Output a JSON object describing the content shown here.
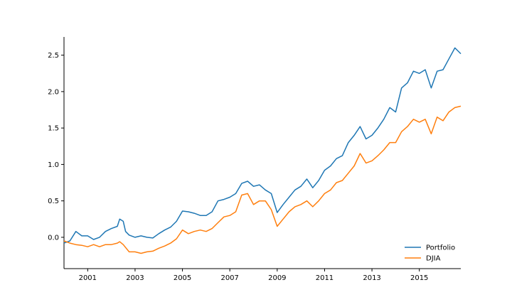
{
  "chart_data": {
    "type": "line",
    "title": "",
    "xlabel": "",
    "ylabel": "",
    "xlim": [
      2000.0,
      2016.75
    ],
    "ylim": [
      -0.43,
      2.75
    ],
    "x_ticks": [
      2001,
      2003,
      2005,
      2007,
      2009,
      2011,
      2013,
      2015
    ],
    "y_ticks": [
      0.0,
      0.5,
      1.0,
      1.5,
      2.0,
      2.5
    ],
    "y_tick_labels": [
      "0.0",
      "0.5",
      "1.0",
      "1.5",
      "2.0",
      "2.5"
    ],
    "grid": false,
    "legend_position": "lower-right",
    "series": [
      {
        "name": "Portfolio",
        "color": "#1f77b4",
        "points": [
          [
            2000.0,
            -0.08
          ],
          [
            2000.25,
            -0.05
          ],
          [
            2000.5,
            0.08
          ],
          [
            2000.75,
            0.02
          ],
          [
            2001.0,
            0.02
          ],
          [
            2001.25,
            -0.03
          ],
          [
            2001.5,
            0.0
          ],
          [
            2001.75,
            0.08
          ],
          [
            2002.0,
            0.12
          ],
          [
            2002.25,
            0.15
          ],
          [
            2002.35,
            0.25
          ],
          [
            2002.5,
            0.22
          ],
          [
            2002.6,
            0.08
          ],
          [
            2002.75,
            0.03
          ],
          [
            2003.0,
            0.0
          ],
          [
            2003.25,
            0.02
          ],
          [
            2003.5,
            0.0
          ],
          [
            2003.75,
            -0.01
          ],
          [
            2004.0,
            0.05
          ],
          [
            2004.25,
            0.1
          ],
          [
            2004.5,
            0.14
          ],
          [
            2004.75,
            0.22
          ],
          [
            2005.0,
            0.36
          ],
          [
            2005.25,
            0.35
          ],
          [
            2005.5,
            0.33
          ],
          [
            2005.75,
            0.3
          ],
          [
            2006.0,
            0.3
          ],
          [
            2006.25,
            0.35
          ],
          [
            2006.5,
            0.5
          ],
          [
            2006.75,
            0.52
          ],
          [
            2007.0,
            0.55
          ],
          [
            2007.25,
            0.6
          ],
          [
            2007.5,
            0.74
          ],
          [
            2007.75,
            0.77
          ],
          [
            2008.0,
            0.7
          ],
          [
            2008.25,
            0.72
          ],
          [
            2008.5,
            0.65
          ],
          [
            2008.75,
            0.6
          ],
          [
            2009.0,
            0.34
          ],
          [
            2009.25,
            0.45
          ],
          [
            2009.5,
            0.55
          ],
          [
            2009.75,
            0.65
          ],
          [
            2010.0,
            0.7
          ],
          [
            2010.25,
            0.8
          ],
          [
            2010.5,
            0.68
          ],
          [
            2010.75,
            0.78
          ],
          [
            2011.0,
            0.92
          ],
          [
            2011.25,
            0.98
          ],
          [
            2011.5,
            1.08
          ],
          [
            2011.75,
            1.12
          ],
          [
            2012.0,
            1.3
          ],
          [
            2012.25,
            1.4
          ],
          [
            2012.5,
            1.52
          ],
          [
            2012.75,
            1.35
          ],
          [
            2013.0,
            1.4
          ],
          [
            2013.25,
            1.5
          ],
          [
            2013.5,
            1.62
          ],
          [
            2013.75,
            1.78
          ],
          [
            2014.0,
            1.72
          ],
          [
            2014.25,
            2.05
          ],
          [
            2014.5,
            2.12
          ],
          [
            2014.75,
            2.28
          ],
          [
            2015.0,
            2.25
          ],
          [
            2015.25,
            2.3
          ],
          [
            2015.5,
            2.05
          ],
          [
            2015.75,
            2.28
          ],
          [
            2016.0,
            2.3
          ],
          [
            2016.25,
            2.45
          ],
          [
            2016.5,
            2.6
          ],
          [
            2016.75,
            2.52
          ]
        ]
      },
      {
        "name": "DJIA",
        "color": "#ff7f0e",
        "points": [
          [
            2000.0,
            -0.05
          ],
          [
            2000.25,
            -0.08
          ],
          [
            2000.5,
            -0.1
          ],
          [
            2000.75,
            -0.11
          ],
          [
            2001.0,
            -0.13
          ],
          [
            2001.25,
            -0.1
          ],
          [
            2001.5,
            -0.13
          ],
          [
            2001.75,
            -0.1
          ],
          [
            2002.0,
            -0.1
          ],
          [
            2002.25,
            -0.08
          ],
          [
            2002.35,
            -0.06
          ],
          [
            2002.5,
            -0.1
          ],
          [
            2002.75,
            -0.2
          ],
          [
            2003.0,
            -0.2
          ],
          [
            2003.25,
            -0.22
          ],
          [
            2003.5,
            -0.2
          ],
          [
            2003.75,
            -0.19
          ],
          [
            2004.0,
            -0.15
          ],
          [
            2004.25,
            -0.12
          ],
          [
            2004.5,
            -0.08
          ],
          [
            2004.75,
            -0.02
          ],
          [
            2005.0,
            0.1
          ],
          [
            2005.25,
            0.05
          ],
          [
            2005.5,
            0.08
          ],
          [
            2005.75,
            0.1
          ],
          [
            2006.0,
            0.08
          ],
          [
            2006.25,
            0.12
          ],
          [
            2006.5,
            0.2
          ],
          [
            2006.75,
            0.28
          ],
          [
            2007.0,
            0.3
          ],
          [
            2007.25,
            0.35
          ],
          [
            2007.5,
            0.58
          ],
          [
            2007.75,
            0.6
          ],
          [
            2008.0,
            0.45
          ],
          [
            2008.25,
            0.5
          ],
          [
            2008.5,
            0.5
          ],
          [
            2008.75,
            0.38
          ],
          [
            2009.0,
            0.15
          ],
          [
            2009.25,
            0.25
          ],
          [
            2009.5,
            0.35
          ],
          [
            2009.75,
            0.42
          ],
          [
            2010.0,
            0.45
          ],
          [
            2010.25,
            0.5
          ],
          [
            2010.5,
            0.42
          ],
          [
            2010.75,
            0.5
          ],
          [
            2011.0,
            0.6
          ],
          [
            2011.25,
            0.65
          ],
          [
            2011.5,
            0.75
          ],
          [
            2011.75,
            0.78
          ],
          [
            2012.0,
            0.88
          ],
          [
            2012.25,
            0.98
          ],
          [
            2012.5,
            1.15
          ],
          [
            2012.75,
            1.02
          ],
          [
            2013.0,
            1.05
          ],
          [
            2013.25,
            1.12
          ],
          [
            2013.5,
            1.2
          ],
          [
            2013.75,
            1.3
          ],
          [
            2014.0,
            1.3
          ],
          [
            2014.25,
            1.45
          ],
          [
            2014.5,
            1.52
          ],
          [
            2014.75,
            1.62
          ],
          [
            2015.0,
            1.58
          ],
          [
            2015.25,
            1.62
          ],
          [
            2015.5,
            1.42
          ],
          [
            2015.75,
            1.65
          ],
          [
            2016.0,
            1.6
          ],
          [
            2016.25,
            1.72
          ],
          [
            2016.5,
            1.78
          ],
          [
            2016.75,
            1.8
          ]
        ]
      }
    ]
  }
}
